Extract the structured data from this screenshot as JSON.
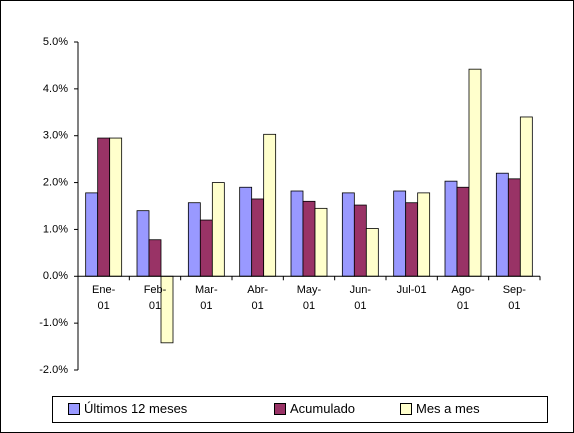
{
  "chart_data": {
    "type": "bar",
    "categories": [
      "Ene-01",
      "Feb-01",
      "Mar-01",
      "Abr-01",
      "May-01",
      "Jun-01",
      "Jul-01",
      "Ago-01",
      "Sep-01"
    ],
    "series": [
      {
        "name": "Últimos 12 meses",
        "color": "#9999ff",
        "values": [
          1.78,
          1.4,
          1.57,
          1.9,
          1.82,
          1.78,
          1.82,
          2.03,
          2.2
        ]
      },
      {
        "name": "Acumulado",
        "color": "#993366",
        "values": [
          2.95,
          0.78,
          1.2,
          1.65,
          1.6,
          1.52,
          1.57,
          1.9,
          2.08
        ]
      },
      {
        "name": "Mes a mes",
        "color": "#ffffcc",
        "values": [
          2.95,
          -1.42,
          2.0,
          3.03,
          1.45,
          1.02,
          1.78,
          4.42,
          3.4
        ]
      }
    ],
    "ylim": [
      -2,
      5
    ],
    "yticks": [
      {
        "value": -2,
        "label": "-2.0%"
      },
      {
        "value": -1,
        "label": "-1.0%"
      },
      {
        "value": 0,
        "label": "0.0%"
      },
      {
        "value": 1,
        "label": "1.0%"
      },
      {
        "value": 2,
        "label": "2.0%"
      },
      {
        "value": 3,
        "label": "3.0%"
      },
      {
        "value": 4,
        "label": "4.0%"
      },
      {
        "value": 5,
        "label": "5.0%"
      }
    ],
    "legend": "bottom"
  }
}
